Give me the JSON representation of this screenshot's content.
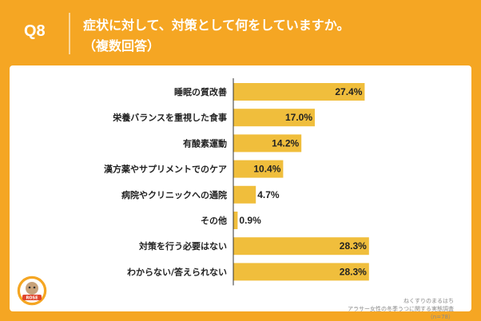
{
  "header": {
    "q_number": "Q8",
    "title_line1": "症状に対して、対策として何をしていますか。",
    "title_line2": "（複数回答）"
  },
  "chart_data": {
    "type": "bar",
    "orientation": "horizontal",
    "categories": [
      "睡眠の質改善",
      "栄養バランスを重視した食事",
      "有酸素運動",
      "漢方薬やサプリメントでのケア",
      "病院やクリニックへの通院",
      "その他",
      "対策を行う必要はない",
      "わからない/答えられない"
    ],
    "values": [
      27.4,
      17.0,
      14.2,
      10.4,
      4.7,
      0.9,
      28.3,
      28.3
    ],
    "value_labels": [
      "27.4%",
      "17.0%",
      "14.2%",
      "10.4%",
      "4.7%",
      "0.9%",
      "28.3%",
      "28.3%"
    ],
    "xlim": [
      0,
      30
    ],
    "unit": "%",
    "bar_color": "#F0BE3C"
  },
  "source": {
    "line1": "ねくすりのまるはち",
    "line2": "アラサー女性の冬季うつに関する実態調査",
    "line3": "（n=78）"
  },
  "logo": {
    "text": "ROSE"
  },
  "colors": {
    "background": "#F5A623",
    "bar": "#F0BE3C",
    "axis": "#333333"
  }
}
